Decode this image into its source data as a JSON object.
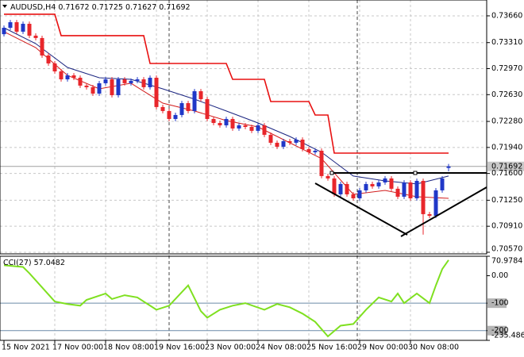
{
  "chart_data": [
    {
      "type": "candlestick",
      "title": "AUDUSD,H4",
      "open": [
        0.7342,
        0.73504,
        0.73577,
        0.73453,
        0.73556,
        0.73401,
        0.7337,
        0.73142,
        0.73038,
        0.72934,
        0.7283,
        0.72882,
        0.72851,
        0.72748,
        0.72727,
        0.72644,
        0.72779,
        0.7283,
        0.72623,
        0.7283,
        0.72779,
        0.7281,
        0.7283,
        0.72727,
        0.72851,
        0.72468,
        0.72416,
        0.72312,
        0.72364,
        0.72519,
        0.72416,
        0.72675,
        0.72571,
        0.72312,
        0.7226,
        0.72229,
        0.72312,
        0.72188,
        0.72229,
        0.72208,
        0.72157,
        0.72229,
        0.72105,
        0.72001,
        0.71949,
        0.72022,
        0.72001,
        0.72042,
        0.71918,
        0.71877,
        0.71897,
        0.71566,
        0.71535,
        0.71327,
        0.71462,
        0.71327,
        0.71275,
        0.71379,
        0.71462,
        0.71431,
        0.71482,
        0.71535,
        0.714,
        0.71296,
        0.71482,
        0.71275,
        0.71503,
        0.71068,
        0.71047,
        0.71379,
        0.71672
      ],
      "high": [
        0.73534,
        0.73607,
        0.73607,
        0.73586,
        0.73586,
        0.73431,
        0.734,
        0.73172,
        0.73068,
        0.72964,
        0.72912,
        0.72912,
        0.72881,
        0.72778,
        0.72757,
        0.72809,
        0.7286,
        0.7286,
        0.7286,
        0.7286,
        0.7284,
        0.7286,
        0.7286,
        0.72881,
        0.72881,
        0.72498,
        0.72446,
        0.72394,
        0.72549,
        0.72549,
        0.72705,
        0.72705,
        0.72601,
        0.72342,
        0.7229,
        0.72342,
        0.72342,
        0.72259,
        0.72259,
        0.72238,
        0.72259,
        0.72259,
        0.72135,
        0.72031,
        0.72052,
        0.72052,
        0.72072,
        0.72072,
        0.71948,
        0.71927,
        0.71927,
        0.71596,
        0.71565,
        0.71492,
        0.71492,
        0.71357,
        0.71409,
        0.71492,
        0.71492,
        0.71512,
        0.71565,
        0.71565,
        0.7143,
        0.71512,
        0.71512,
        0.71533,
        0.71533,
        0.71098,
        0.71409,
        0.71565,
        0.71725
      ],
      "low": [
        0.7339,
        0.73474,
        0.73423,
        0.73423,
        0.73371,
        0.7334,
        0.73112,
        0.73008,
        0.72904,
        0.728,
        0.728,
        0.72821,
        0.72718,
        0.72697,
        0.72614,
        0.72614,
        0.72749,
        0.72593,
        0.72593,
        0.72749,
        0.72749,
        0.7278,
        0.72697,
        0.72697,
        0.72438,
        0.72386,
        0.72282,
        0.72282,
        0.72334,
        0.72386,
        0.72386,
        0.72541,
        0.72282,
        0.7223,
        0.72199,
        0.72199,
        0.72158,
        0.72158,
        0.72178,
        0.72127,
        0.72127,
        0.72075,
        0.71971,
        0.71919,
        0.71919,
        0.71971,
        0.71971,
        0.71888,
        0.71847,
        0.71847,
        0.71536,
        0.71505,
        0.71297,
        0.71297,
        0.71297,
        0.71245,
        0.71245,
        0.71349,
        0.71401,
        0.71401,
        0.71452,
        0.7137,
        0.71266,
        0.71266,
        0.71245,
        0.71245,
        0.708,
        0.71017,
        0.71017,
        0.71349,
        0.71627
      ],
      "close": [
        0.73504,
        0.73577,
        0.73453,
        0.73556,
        0.73401,
        0.7337,
        0.73142,
        0.73038,
        0.72934,
        0.7283,
        0.72882,
        0.72851,
        0.72748,
        0.72727,
        0.72644,
        0.72779,
        0.7283,
        0.72623,
        0.7283,
        0.72779,
        0.7281,
        0.7283,
        0.72727,
        0.72851,
        0.72468,
        0.72416,
        0.72312,
        0.72364,
        0.72519,
        0.72416,
        0.72675,
        0.72571,
        0.72312,
        0.7226,
        0.72229,
        0.72312,
        0.72188,
        0.72229,
        0.72208,
        0.72157,
        0.72229,
        0.72105,
        0.72001,
        0.71949,
        0.72022,
        0.72001,
        0.72042,
        0.71918,
        0.71877,
        0.71897,
        0.71566,
        0.71535,
        0.71327,
        0.71462,
        0.71327,
        0.71275,
        0.71379,
        0.71462,
        0.71431,
        0.71482,
        0.71535,
        0.714,
        0.71296,
        0.71482,
        0.71275,
        0.71503,
        0.71068,
        0.71047,
        0.71379,
        0.71535,
        0.71692
      ],
      "up_color": "#2038c8",
      "down_color": "#e8262b",
      "upper_band": {
        "x": [
          0,
          8,
          9,
          22,
          23,
          35,
          36,
          41,
          42,
          48,
          49,
          51,
          52,
          70
        ],
        "values": [
          0.73681,
          0.73681,
          0.73401,
          0.73401,
          0.73038,
          0.73038,
          0.7283,
          0.7283,
          0.7254,
          0.7254,
          0.72364,
          0.72364,
          0.71866,
          0.71866
        ],
        "color": "#e81010"
      },
      "ma_slow": {
        "x": [
          0,
          5,
          10,
          15,
          20,
          25,
          30,
          35,
          40,
          45,
          50,
          55,
          60,
          65,
          70
        ],
        "values": [
          0.73504,
          0.73297,
          0.72986,
          0.72851,
          0.7283,
          0.72706,
          0.72571,
          0.72416,
          0.7226,
          0.72084,
          0.71877,
          0.71566,
          0.71503,
          0.71462,
          0.71566
        ],
        "color": "#1a2480"
      },
      "ma_fast": {
        "x": [
          0,
          5,
          10,
          15,
          20,
          25,
          30,
          35,
          40,
          45,
          50,
          55,
          60,
          65,
          70
        ],
        "values": [
          0.73453,
          0.73245,
          0.72882,
          0.72706,
          0.72779,
          0.72519,
          0.72416,
          0.72291,
          0.72208,
          0.72001,
          0.71794,
          0.71327,
          0.71379,
          0.71296,
          0.71275
        ],
        "color": "#d21c1c"
      },
      "ylim": [
        0.70549,
        0.73867
      ],
      "yticks": [
        {
          "value": 0.7366,
          "label": "0.73660"
        },
        {
          "value": 0.7331,
          "label": "0.73310"
        },
        {
          "value": 0.7297,
          "label": "0.72970"
        },
        {
          "value": 0.7263,
          "label": "0.72630"
        },
        {
          "value": 0.7228,
          "label": "0.72280"
        },
        {
          "value": 0.7194,
          "label": "0.71940"
        },
        {
          "value": 0.716,
          "label": "0.71600"
        },
        {
          "value": 0.7125,
          "label": "0.71250"
        },
        {
          "value": 0.7091,
          "label": "0.70910"
        },
        {
          "value": 0.7057,
          "label": "0.70570"
        }
      ],
      "x_tick_labels": [
        "15 Nov 2021",
        "17 Nov 00:00",
        "18 Nov 08:00",
        "19 Nov 16:00",
        "23 Nov 00:00",
        "24 Nov 08:00",
        "25 Nov 16:00",
        "29 Nov 00:00",
        "30 Nov 08:00"
      ],
      "grid": true
    },
    {
      "type": "line",
      "title": "CCI(27)",
      "x": [
        0,
        3,
        4,
        8,
        10,
        12,
        13,
        16,
        17,
        19,
        21,
        24,
        26,
        29,
        31,
        32,
        34,
        36,
        38,
        41,
        43,
        45,
        47,
        49,
        51,
        53,
        55,
        57,
        59,
        61,
        62,
        63,
        65,
        67,
        68,
        69,
        70
      ],
      "values": [
        38,
        32,
        9,
        -94,
        -103,
        -109,
        -88,
        -65,
        -85,
        -71,
        -79,
        -124,
        -109,
        -35,
        -129,
        -153,
        -124,
        -109,
        -100,
        -124,
        -103,
        -115,
        -138,
        -168,
        -221,
        -182,
        -176,
        -124,
        -79,
        -94,
        -65,
        -100,
        -65,
        -100,
        -35,
        24,
        57.0482
      ],
      "color": "#7fe020",
      "ylim": [
        -235.4861,
        70.9784
      ],
      "yticks": [
        70.9784,
        {
          "value": 0,
          "label": "0.00"
        },
        -100,
        -200,
        -235.4861
      ],
      "levels": [
        -100,
        -200
      ]
    }
  ]
}
